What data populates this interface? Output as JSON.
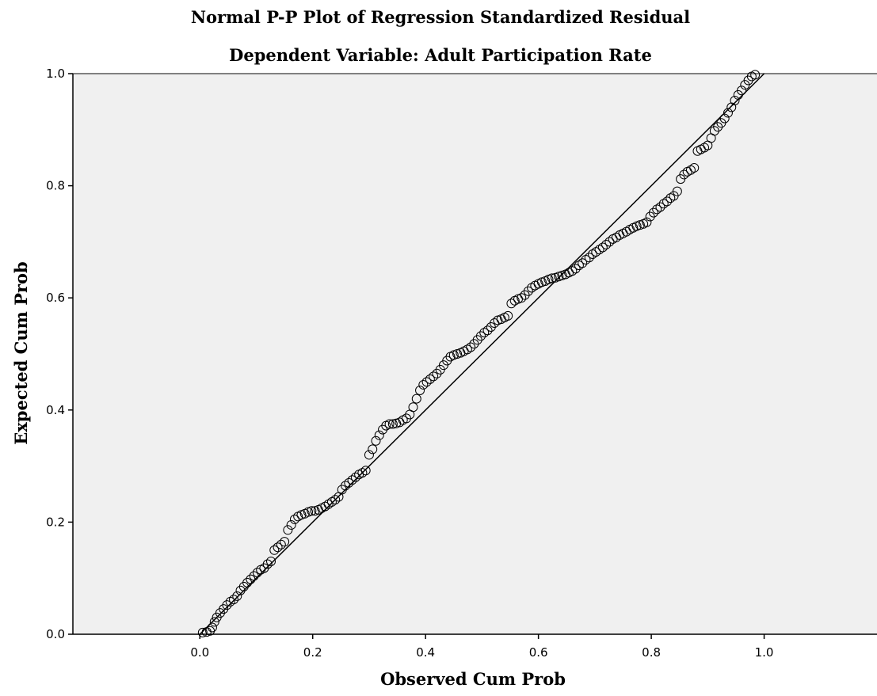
{
  "chart_data": {
    "type": "scatter",
    "title": "Normal P-P Plot of Regression Standardized Residual",
    "subtitle": "Dependent Variable: Adult Participation Rate",
    "xlabel": "Observed Cum Prob",
    "ylabel": "Expected Cum Prob",
    "xlim": [
      -0.225,
      1.2
    ],
    "ylim": [
      0.0,
      1.0
    ],
    "x_ticks": [
      "0.0",
      "0.2",
      "0.4",
      "0.6",
      "0.8",
      "1.0"
    ],
    "y_ticks": [
      "0.0",
      "0.2",
      "0.4",
      "0.6",
      "0.8",
      "1.0"
    ],
    "grid": false,
    "reference_line": {
      "from": [
        0.0,
        0.0
      ],
      "to": [
        1.0,
        1.0
      ]
    },
    "colors": {
      "plot_background": "#f0f0f0",
      "marker": "#000000",
      "line": "#000000"
    },
    "series": [
      {
        "marker": "open-circle",
        "points": [
          [
            0.005,
            0.003
          ],
          [
            0.012,
            0.004
          ],
          [
            0.018,
            0.006
          ],
          [
            0.022,
            0.012
          ],
          [
            0.026,
            0.022
          ],
          [
            0.03,
            0.03
          ],
          [
            0.036,
            0.038
          ],
          [
            0.042,
            0.045
          ],
          [
            0.048,
            0.052
          ],
          [
            0.054,
            0.058
          ],
          [
            0.06,
            0.062
          ],
          [
            0.066,
            0.068
          ],
          [
            0.072,
            0.078
          ],
          [
            0.078,
            0.085
          ],
          [
            0.084,
            0.092
          ],
          [
            0.09,
            0.098
          ],
          [
            0.096,
            0.104
          ],
          [
            0.102,
            0.11
          ],
          [
            0.108,
            0.115
          ],
          [
            0.114,
            0.118
          ],
          [
            0.12,
            0.125
          ],
          [
            0.126,
            0.13
          ],
          [
            0.132,
            0.15
          ],
          [
            0.138,
            0.155
          ],
          [
            0.144,
            0.16
          ],
          [
            0.15,
            0.165
          ],
          [
            0.156,
            0.186
          ],
          [
            0.162,
            0.195
          ],
          [
            0.168,
            0.205
          ],
          [
            0.174,
            0.21
          ],
          [
            0.18,
            0.213
          ],
          [
            0.186,
            0.215
          ],
          [
            0.192,
            0.218
          ],
          [
            0.198,
            0.22
          ],
          [
            0.204,
            0.22
          ],
          [
            0.21,
            0.222
          ],
          [
            0.216,
            0.225
          ],
          [
            0.222,
            0.228
          ],
          [
            0.228,
            0.232
          ],
          [
            0.234,
            0.236
          ],
          [
            0.24,
            0.24
          ],
          [
            0.246,
            0.245
          ],
          [
            0.252,
            0.258
          ],
          [
            0.258,
            0.265
          ],
          [
            0.264,
            0.27
          ],
          [
            0.27,
            0.275
          ],
          [
            0.276,
            0.28
          ],
          [
            0.282,
            0.285
          ],
          [
            0.288,
            0.288
          ],
          [
            0.294,
            0.292
          ],
          [
            0.3,
            0.32
          ],
          [
            0.306,
            0.33
          ],
          [
            0.312,
            0.345
          ],
          [
            0.318,
            0.355
          ],
          [
            0.324,
            0.365
          ],
          [
            0.33,
            0.372
          ],
          [
            0.336,
            0.375
          ],
          [
            0.342,
            0.375
          ],
          [
            0.348,
            0.376
          ],
          [
            0.354,
            0.378
          ],
          [
            0.36,
            0.382
          ],
          [
            0.366,
            0.385
          ],
          [
            0.372,
            0.392
          ],
          [
            0.378,
            0.405
          ],
          [
            0.384,
            0.42
          ],
          [
            0.39,
            0.435
          ],
          [
            0.396,
            0.445
          ],
          [
            0.402,
            0.45
          ],
          [
            0.408,
            0.455
          ],
          [
            0.414,
            0.46
          ],
          [
            0.42,
            0.465
          ],
          [
            0.426,
            0.472
          ],
          [
            0.432,
            0.48
          ],
          [
            0.438,
            0.488
          ],
          [
            0.444,
            0.495
          ],
          [
            0.45,
            0.498
          ],
          [
            0.456,
            0.5
          ],
          [
            0.462,
            0.502
          ],
          [
            0.468,
            0.505
          ],
          [
            0.474,
            0.508
          ],
          [
            0.48,
            0.512
          ],
          [
            0.486,
            0.518
          ],
          [
            0.492,
            0.525
          ],
          [
            0.498,
            0.532
          ],
          [
            0.504,
            0.538
          ],
          [
            0.51,
            0.542
          ],
          [
            0.516,
            0.548
          ],
          [
            0.522,
            0.555
          ],
          [
            0.528,
            0.56
          ],
          [
            0.534,
            0.562
          ],
          [
            0.54,
            0.565
          ],
          [
            0.546,
            0.568
          ],
          [
            0.552,
            0.59
          ],
          [
            0.558,
            0.595
          ],
          [
            0.564,
            0.598
          ],
          [
            0.57,
            0.6
          ],
          [
            0.576,
            0.605
          ],
          [
            0.582,
            0.612
          ],
          [
            0.588,
            0.618
          ],
          [
            0.594,
            0.622
          ],
          [
            0.6,
            0.625
          ],
          [
            0.606,
            0.628
          ],
          [
            0.612,
            0.63
          ],
          [
            0.618,
            0.633
          ],
          [
            0.624,
            0.635
          ],
          [
            0.63,
            0.636
          ],
          [
            0.636,
            0.638
          ],
          [
            0.642,
            0.64
          ],
          [
            0.648,
            0.642
          ],
          [
            0.654,
            0.645
          ],
          [
            0.66,
            0.648
          ],
          [
            0.666,
            0.652
          ],
          [
            0.672,
            0.658
          ],
          [
            0.678,
            0.662
          ],
          [
            0.684,
            0.668
          ],
          [
            0.69,
            0.672
          ],
          [
            0.696,
            0.678
          ],
          [
            0.702,
            0.682
          ],
          [
            0.708,
            0.686
          ],
          [
            0.714,
            0.69
          ],
          [
            0.72,
            0.695
          ],
          [
            0.726,
            0.7
          ],
          [
            0.732,
            0.705
          ],
          [
            0.738,
            0.708
          ],
          [
            0.744,
            0.712
          ],
          [
            0.75,
            0.715
          ],
          [
            0.756,
            0.718
          ],
          [
            0.762,
            0.722
          ],
          [
            0.768,
            0.725
          ],
          [
            0.774,
            0.728
          ],
          [
            0.78,
            0.73
          ],
          [
            0.786,
            0.732
          ],
          [
            0.792,
            0.735
          ],
          [
            0.798,
            0.745
          ],
          [
            0.804,
            0.752
          ],
          [
            0.81,
            0.758
          ],
          [
            0.816,
            0.762
          ],
          [
            0.822,
            0.768
          ],
          [
            0.828,
            0.772
          ],
          [
            0.834,
            0.778
          ],
          [
            0.84,
            0.782
          ],
          [
            0.846,
            0.79
          ],
          [
            0.852,
            0.812
          ],
          [
            0.858,
            0.82
          ],
          [
            0.864,
            0.825
          ],
          [
            0.87,
            0.828
          ],
          [
            0.876,
            0.832
          ],
          [
            0.882,
            0.862
          ],
          [
            0.888,
            0.865
          ],
          [
            0.894,
            0.868
          ],
          [
            0.9,
            0.872
          ],
          [
            0.906,
            0.885
          ],
          [
            0.912,
            0.898
          ],
          [
            0.918,
            0.905
          ],
          [
            0.924,
            0.912
          ],
          [
            0.93,
            0.92
          ],
          [
            0.936,
            0.93
          ],
          [
            0.942,
            0.94
          ],
          [
            0.948,
            0.952
          ],
          [
            0.954,
            0.962
          ],
          [
            0.96,
            0.97
          ],
          [
            0.966,
            0.98
          ],
          [
            0.972,
            0.988
          ],
          [
            0.978,
            0.995
          ],
          [
            0.984,
            0.998
          ]
        ]
      }
    ]
  }
}
